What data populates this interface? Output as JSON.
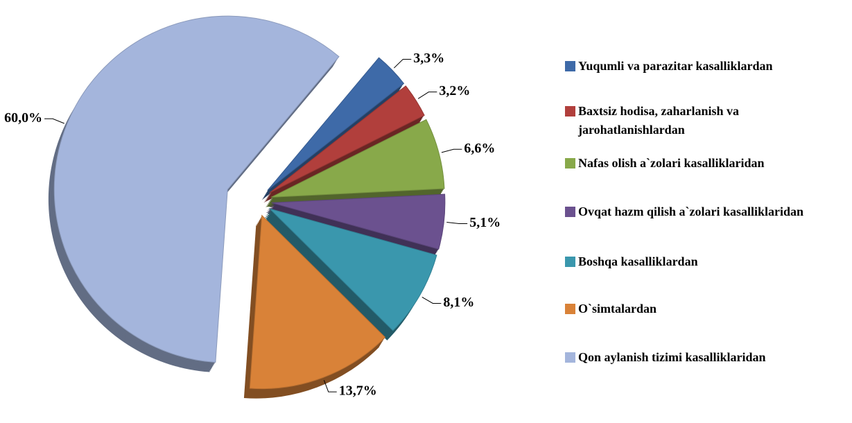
{
  "chart_data": {
    "type": "pie",
    "categories": [
      "Yuqumli va parazitar kasalliklardan",
      "Baxtsiz hodisa, zaharlanish va jarohatlanishlardan",
      "Nafas olish a`zolari kasalliklaridan",
      "Ovqat hazm qilish a`zolari kasalliklaridan",
      "Boshqa kasalliklardan",
      "O`simtalardan",
      "Qon aylanish tizimi kasalliklaridan"
    ],
    "values": [
      3.3,
      3.2,
      6.6,
      5.1,
      8.1,
      13.7,
      60.0
    ],
    "value_labels": [
      "3,3%",
      "3,2%",
      "6,6%",
      "5,1%",
      "8,1%",
      "13,7%",
      "60,0%"
    ],
    "colors": [
      "#3e6aa8",
      "#b13f3c",
      "#88a94a",
      "#6b518f",
      "#3a97ad",
      "#d98238",
      "#a4b5dc"
    ],
    "legend": "right"
  }
}
